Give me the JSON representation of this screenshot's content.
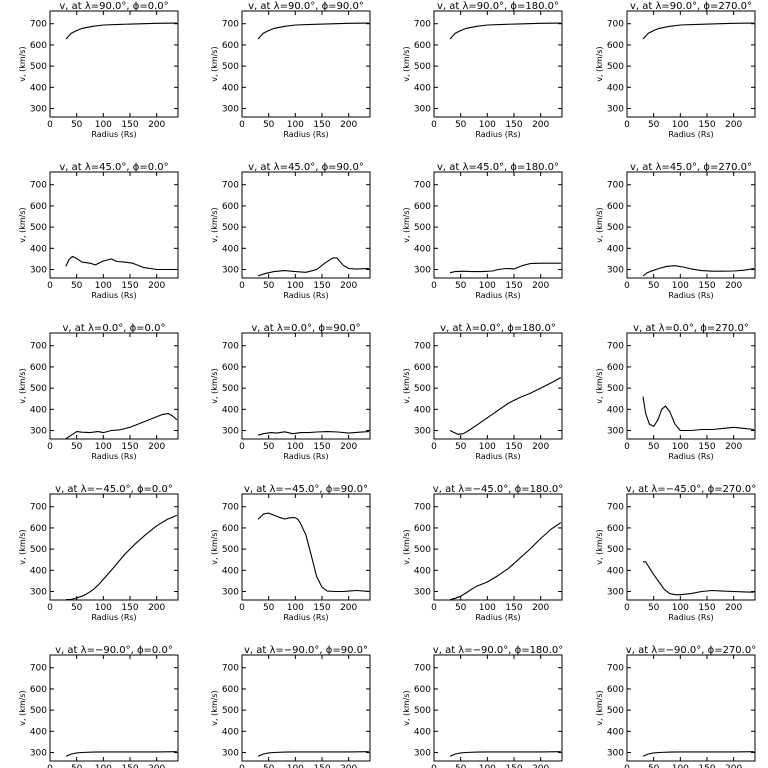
{
  "chart_data": [
    {
      "type": "line",
      "title": "v, at λ=90.0°, ϕ=0.0°",
      "xlabel": "Radius (Rs)",
      "ylabel": "v, (km/s)",
      "xlim": [
        0,
        240
      ],
      "ylim": [
        260,
        760
      ],
      "xticks": [
        0,
        50,
        100,
        150,
        200
      ],
      "yticks": [
        300,
        400,
        500,
        600,
        700
      ],
      "x": [
        30,
        40,
        50,
        60,
        80,
        100,
        130,
        160,
        200,
        238
      ],
      "values": [
        628,
        655,
        668,
        678,
        688,
        694,
        697,
        699,
        702,
        703
      ]
    },
    {
      "type": "line",
      "title": "v, at λ=90.0°, ϕ=90.0°",
      "xlabel": "Radius (Rs)",
      "ylabel": "v, (km/s)",
      "xlim": [
        0,
        240
      ],
      "ylim": [
        260,
        760
      ],
      "xticks": [
        0,
        50,
        100,
        150,
        200
      ],
      "yticks": [
        300,
        400,
        500,
        600,
        700
      ],
      "x": [
        30,
        40,
        50,
        60,
        80,
        100,
        130,
        160,
        200,
        238
      ],
      "values": [
        628,
        655,
        668,
        678,
        688,
        694,
        697,
        699,
        702,
        703
      ]
    },
    {
      "type": "line",
      "title": "v, at λ=90.0°, ϕ=180.0°",
      "xlabel": "Radius (Rs)",
      "ylabel": "v, (km/s)",
      "xlim": [
        0,
        240
      ],
      "ylim": [
        260,
        760
      ],
      "xticks": [
        0,
        50,
        100,
        150,
        200
      ],
      "yticks": [
        300,
        400,
        500,
        600,
        700
      ],
      "x": [
        30,
        40,
        50,
        60,
        80,
        100,
        130,
        160,
        200,
        238
      ],
      "values": [
        628,
        655,
        668,
        678,
        688,
        694,
        697,
        699,
        702,
        703
      ]
    },
    {
      "type": "line",
      "title": "v, at λ=90.0°, ϕ=270.0°",
      "xlabel": "Radius (Rs)",
      "ylabel": "v, (km/s)",
      "xlim": [
        0,
        240
      ],
      "ylim": [
        260,
        760
      ],
      "xticks": [
        0,
        50,
        100,
        150,
        200
      ],
      "yticks": [
        300,
        400,
        500,
        600,
        700
      ],
      "x": [
        30,
        40,
        50,
        60,
        80,
        100,
        130,
        160,
        200,
        238
      ],
      "values": [
        628,
        655,
        668,
        678,
        688,
        694,
        697,
        699,
        702,
        703
      ]
    },
    {
      "type": "line",
      "title": "v, at λ=45.0°, ϕ=0.0°",
      "xlabel": "Radius (Rs)",
      "ylabel": "v, (km/s)",
      "xlim": [
        0,
        240
      ],
      "ylim": [
        260,
        760
      ],
      "xticks": [
        0,
        50,
        100,
        150,
        200
      ],
      "yticks": [
        300,
        400,
        500,
        600,
        700
      ],
      "x": [
        30,
        35,
        42,
        50,
        60,
        75,
        85,
        100,
        115,
        125,
        140,
        155,
        175,
        200,
        238
      ],
      "values": [
        315,
        345,
        362,
        352,
        335,
        330,
        322,
        340,
        350,
        338,
        335,
        330,
        310,
        300,
        300
      ]
    },
    {
      "type": "line",
      "title": "v, at λ=45.0°, ϕ=90.0°",
      "xlabel": "Radius (Rs)",
      "ylabel": "v, (km/s)",
      "xlim": [
        0,
        240
      ],
      "ylim": [
        260,
        760
      ],
      "xticks": [
        0,
        50,
        100,
        150,
        200
      ],
      "yticks": [
        300,
        400,
        500,
        600,
        700
      ],
      "x": [
        30,
        45,
        60,
        80,
        100,
        120,
        140,
        155,
        170,
        178,
        190,
        200,
        215,
        238
      ],
      "values": [
        270,
        282,
        290,
        295,
        290,
        287,
        300,
        330,
        355,
        355,
        320,
        305,
        302,
        305
      ]
    },
    {
      "type": "line",
      "title": "v, at λ=45.0°, ϕ=180.0°",
      "xlabel": "Radius (Rs)",
      "ylabel": "v, (km/s)",
      "xlim": [
        0,
        240
      ],
      "ylim": [
        260,
        760
      ],
      "xticks": [
        0,
        50,
        100,
        150,
        200
      ],
      "yticks": [
        300,
        400,
        500,
        600,
        700
      ],
      "x": [
        30,
        40,
        55,
        70,
        90,
        110,
        120,
        135,
        150,
        165,
        180,
        200,
        220,
        238
      ],
      "values": [
        285,
        290,
        292,
        290,
        290,
        293,
        300,
        305,
        303,
        318,
        328,
        330,
        330,
        330
      ]
    },
    {
      "type": "line",
      "title": "v, at λ=45.0°, ϕ=270.0°",
      "xlabel": "Radius (Rs)",
      "ylabel": "v, (km/s)",
      "xlim": [
        0,
        240
      ],
      "ylim": [
        260,
        760
      ],
      "xticks": [
        0,
        50,
        100,
        150,
        200
      ],
      "yticks": [
        300,
        400,
        500,
        600,
        700
      ],
      "x": [
        30,
        38,
        45,
        60,
        75,
        90,
        105,
        120,
        140,
        160,
        180,
        200,
        220,
        238
      ],
      "values": [
        270,
        285,
        292,
        305,
        315,
        318,
        312,
        303,
        295,
        292,
        292,
        293,
        297,
        305
      ]
    },
    {
      "type": "line",
      "title": "v, at λ=0.0°, ϕ=0.0°",
      "xlabel": "Radius (Rs)",
      "ylabel": "v, (km/s)",
      "xlim": [
        0,
        240
      ],
      "ylim": [
        260,
        760
      ],
      "xticks": [
        0,
        50,
        100,
        150,
        200
      ],
      "yticks": [
        300,
        400,
        500,
        600,
        700
      ],
      "x": [
        30,
        40,
        50,
        60,
        75,
        90,
        100,
        115,
        130,
        150,
        170,
        190,
        210,
        222,
        230,
        238
      ],
      "values": [
        262,
        278,
        295,
        292,
        290,
        295,
        290,
        300,
        303,
        315,
        335,
        355,
        375,
        380,
        368,
        350
      ]
    },
    {
      "type": "line",
      "title": "v, at λ=0.0°, ϕ=90.0°",
      "xlabel": "Radius (Rs)",
      "ylabel": "v, (km/s)",
      "xlim": [
        0,
        240
      ],
      "ylim": [
        260,
        760
      ],
      "xticks": [
        0,
        50,
        100,
        150,
        200
      ],
      "yticks": [
        300,
        400,
        500,
        600,
        700
      ],
      "x": [
        30,
        40,
        55,
        65,
        80,
        95,
        110,
        125,
        140,
        160,
        180,
        200,
        220,
        238
      ],
      "values": [
        278,
        285,
        290,
        288,
        294,
        285,
        290,
        290,
        293,
        295,
        293,
        288,
        292,
        295
      ]
    },
    {
      "type": "line",
      "title": "v, at λ=0.0°, ϕ=180.0°",
      "xlabel": "Radius (Rs)",
      "ylabel": "v, (km/s)",
      "xlim": [
        0,
        240
      ],
      "ylim": [
        260,
        760
      ],
      "xticks": [
        0,
        50,
        100,
        150,
        200
      ],
      "yticks": [
        300,
        400,
        500,
        600,
        700
      ],
      "x": [
        30,
        38,
        45,
        55,
        65,
        80,
        100,
        120,
        140,
        160,
        180,
        200,
        220,
        238
      ],
      "values": [
        300,
        290,
        282,
        285,
        300,
        325,
        360,
        395,
        430,
        455,
        475,
        500,
        525,
        550
      ]
    },
    {
      "type": "line",
      "title": "v, at λ=0.0°, ϕ=270.0°",
      "xlabel": "Radius (Rs)",
      "ylabel": "v, (km/s)",
      "xlim": [
        0,
        240
      ],
      "ylim": [
        260,
        760
      ],
      "xticks": [
        0,
        50,
        100,
        150,
        200
      ],
      "yticks": [
        300,
        400,
        500,
        600,
        700
      ],
      "x": [
        30,
        35,
        42,
        50,
        58,
        65,
        72,
        80,
        90,
        100,
        120,
        140,
        160,
        180,
        200,
        220,
        238
      ],
      "values": [
        460,
        380,
        330,
        320,
        350,
        400,
        415,
        390,
        330,
        300,
        300,
        305,
        305,
        310,
        315,
        310,
        305
      ]
    },
    {
      "type": "line",
      "title": "v, at λ=−45.0°, ϕ=0.0°",
      "xlabel": "Radius (Rs)",
      "ylabel": "v, (km/s)",
      "xlim": [
        0,
        240
      ],
      "ylim": [
        260,
        760
      ],
      "xticks": [
        0,
        50,
        100,
        150,
        200
      ],
      "yticks": [
        300,
        400,
        500,
        600,
        700
      ],
      "x": [
        30,
        40,
        50,
        60,
        70,
        80,
        90,
        100,
        120,
        140,
        160,
        180,
        200,
        220,
        238
      ],
      "values": [
        262,
        263,
        270,
        278,
        290,
        307,
        330,
        357,
        415,
        475,
        525,
        570,
        610,
        640,
        660
      ]
    },
    {
      "type": "line",
      "title": "v, at λ=−45.0°, ϕ=90.0°",
      "xlabel": "Radius (Rs)",
      "ylabel": "v, (km/s)",
      "xlim": [
        0,
        240
      ],
      "ylim": [
        260,
        760
      ],
      "xticks": [
        0,
        50,
        100,
        150,
        200
      ],
      "yticks": [
        300,
        400,
        500,
        600,
        700
      ],
      "x": [
        30,
        40,
        50,
        60,
        70,
        80,
        90,
        100,
        105,
        110,
        120,
        130,
        140,
        150,
        160,
        175,
        190,
        200,
        215,
        230,
        238
      ],
      "values": [
        640,
        665,
        670,
        660,
        650,
        642,
        648,
        648,
        640,
        620,
        565,
        470,
        370,
        320,
        302,
        300,
        300,
        302,
        305,
        302,
        300
      ]
    },
    {
      "type": "line",
      "title": "v, at λ=−45.0°, ϕ=180.0°",
      "xlabel": "Radius (Rs)",
      "ylabel": "v, (km/s)",
      "xlim": [
        0,
        240
      ],
      "ylim": [
        260,
        760
      ],
      "xticks": [
        0,
        50,
        100,
        150,
        200
      ],
      "yticks": [
        300,
        400,
        500,
        600,
        700
      ],
      "x": [
        30,
        40,
        50,
        60,
        70,
        80,
        100,
        120,
        140,
        160,
        180,
        200,
        220,
        238
      ],
      "values": [
        262,
        268,
        278,
        293,
        310,
        325,
        345,
        375,
        410,
        455,
        500,
        550,
        595,
        625
      ]
    },
    {
      "type": "line",
      "title": "v, at λ=−45.0°, ϕ=270.0°",
      "xlabel": "Radius (Rs)",
      "ylabel": "v, (km/s)",
      "xlim": [
        0,
        240
      ],
      "ylim": [
        260,
        760
      ],
      "xticks": [
        0,
        50,
        100,
        150,
        200
      ],
      "yticks": [
        300,
        400,
        500,
        600,
        700
      ],
      "x": [
        30,
        35,
        40,
        50,
        60,
        70,
        80,
        90,
        100,
        120,
        140,
        160,
        180,
        200,
        220,
        238
      ],
      "values": [
        440,
        440,
        420,
        380,
        345,
        310,
        290,
        285,
        285,
        290,
        300,
        305,
        302,
        300,
        298,
        297
      ]
    },
    {
      "type": "line",
      "title": "v, at λ=−90.0°, ϕ=0.0°",
      "xlabel": "Radius (Rs)",
      "ylabel": "v, (km/s)",
      "xlim": [
        0,
        240
      ],
      "ylim": [
        260,
        760
      ],
      "xticks": [
        0,
        50,
        100,
        150,
        200
      ],
      "yticks": [
        300,
        400,
        500,
        600,
        700
      ],
      "x": [
        30,
        40,
        50,
        60,
        80,
        100,
        130,
        160,
        200,
        238
      ],
      "values": [
        282,
        293,
        298,
        300,
        302,
        303,
        303,
        303,
        303,
        304
      ]
    },
    {
      "type": "line",
      "title": "v, at λ=−90.0°, ϕ=90.0°",
      "xlabel": "Radius (Rs)",
      "ylabel": "v, (km/s)",
      "xlim": [
        0,
        240
      ],
      "ylim": [
        260,
        760
      ],
      "xticks": [
        0,
        50,
        100,
        150,
        200
      ],
      "yticks": [
        300,
        400,
        500,
        600,
        700
      ],
      "x": [
        30,
        40,
        50,
        60,
        80,
        100,
        130,
        160,
        200,
        238
      ],
      "values": [
        282,
        293,
        298,
        300,
        302,
        303,
        303,
        303,
        303,
        304
      ]
    },
    {
      "type": "line",
      "title": "v, at λ=−90.0°, ϕ=180.0°",
      "xlabel": "Radius (Rs)",
      "ylabel": "v, (km/s)",
      "xlim": [
        0,
        240
      ],
      "ylim": [
        260,
        760
      ],
      "xticks": [
        0,
        50,
        100,
        150,
        200
      ],
      "yticks": [
        300,
        400,
        500,
        600,
        700
      ],
      "x": [
        30,
        40,
        50,
        60,
        80,
        100,
        130,
        160,
        200,
        238
      ],
      "values": [
        282,
        293,
        298,
        300,
        302,
        303,
        303,
        303,
        303,
        304
      ]
    },
    {
      "type": "line",
      "title": "v, at λ=−90.0°, ϕ=270.0°",
      "xlabel": "Radius (Rs)",
      "ylabel": "v, (km/s)",
      "xlim": [
        0,
        240
      ],
      "ylim": [
        260,
        760
      ],
      "xticks": [
        0,
        50,
        100,
        150,
        200
      ],
      "yticks": [
        300,
        400,
        500,
        600,
        700
      ],
      "x": [
        30,
        40,
        50,
        60,
        80,
        100,
        130,
        160,
        200,
        238
      ],
      "values": [
        282,
        293,
        298,
        300,
        302,
        303,
        303,
        303,
        303,
        304
      ]
    }
  ]
}
